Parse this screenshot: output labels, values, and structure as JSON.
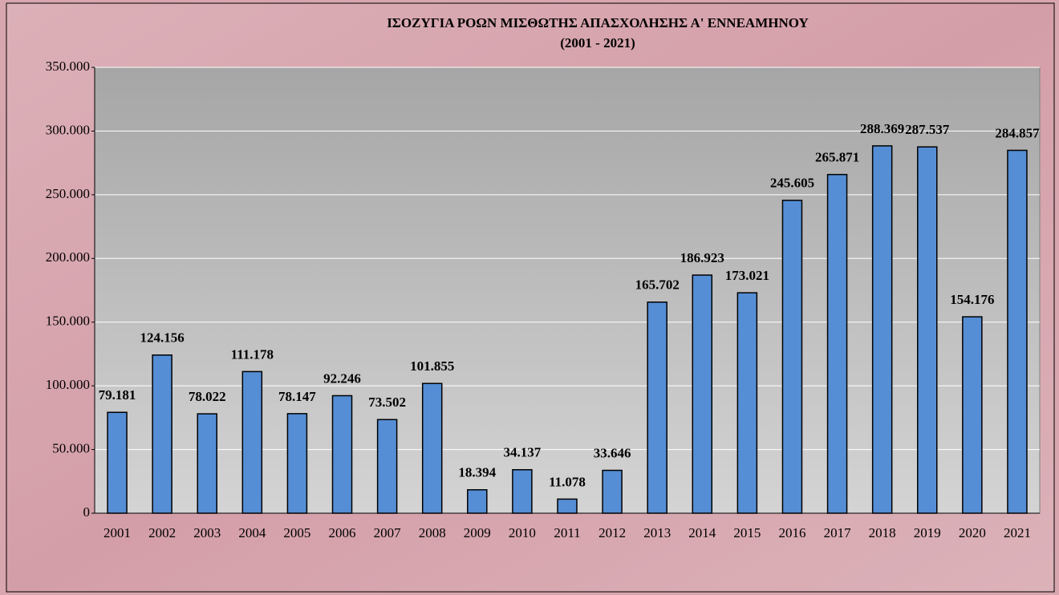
{
  "chart_data": {
    "type": "bar",
    "title": "ΙΣΟΖΥΓΙΑ ΡΟΩΝ ΜΙΣΘΩΤΗΣ ΑΠΑΣΧΟΛΗΣΗΣ Α' ΕΝΝΕΑΜΗΝΟΥ",
    "subtitle": "(2001 - 2021)",
    "categories": [
      "2001",
      "2002",
      "2003",
      "2004",
      "2005",
      "2006",
      "2007",
      "2008",
      "2009",
      "2010",
      "2011",
      "2012",
      "2013",
      "2014",
      "2015",
      "2016",
      "2017",
      "2018",
      "2019",
      "2020",
      "2021"
    ],
    "values": [
      79181,
      124156,
      78022,
      111178,
      78147,
      92246,
      73502,
      101855,
      18394,
      34137,
      11078,
      33646,
      165702,
      186923,
      173021,
      245605,
      265871,
      288369,
      287537,
      154176,
      284857
    ],
    "value_labels": [
      "79.181",
      "124.156",
      "78.022",
      "111.178",
      "78.147",
      "92.246",
      "73.502",
      "101.855",
      "18.394",
      "34.137",
      "11.078",
      "33.646",
      "165.702",
      "186.923",
      "173.021",
      "245.605",
      "265.871",
      "288.369",
      "287.537",
      "154.176",
      "284.857"
    ],
    "color": "#558ed5",
    "ylim": [
      0,
      350000
    ],
    "yticks": [
      0,
      {
        "value": 50000,
        "label": "50.000"
      },
      {
        "value": 100000,
        "label": "100.000"
      },
      {
        "value": 150000,
        "label": "150.000"
      },
      {
        "value": 200000,
        "label": "200.000"
      },
      {
        "value": 250000,
        "label": "250.000"
      },
      {
        "value": 300000,
        "label": "300.000"
      },
      {
        "value": 350000,
        "label": "350.000"
      }
    ],
    "grid": true
  }
}
